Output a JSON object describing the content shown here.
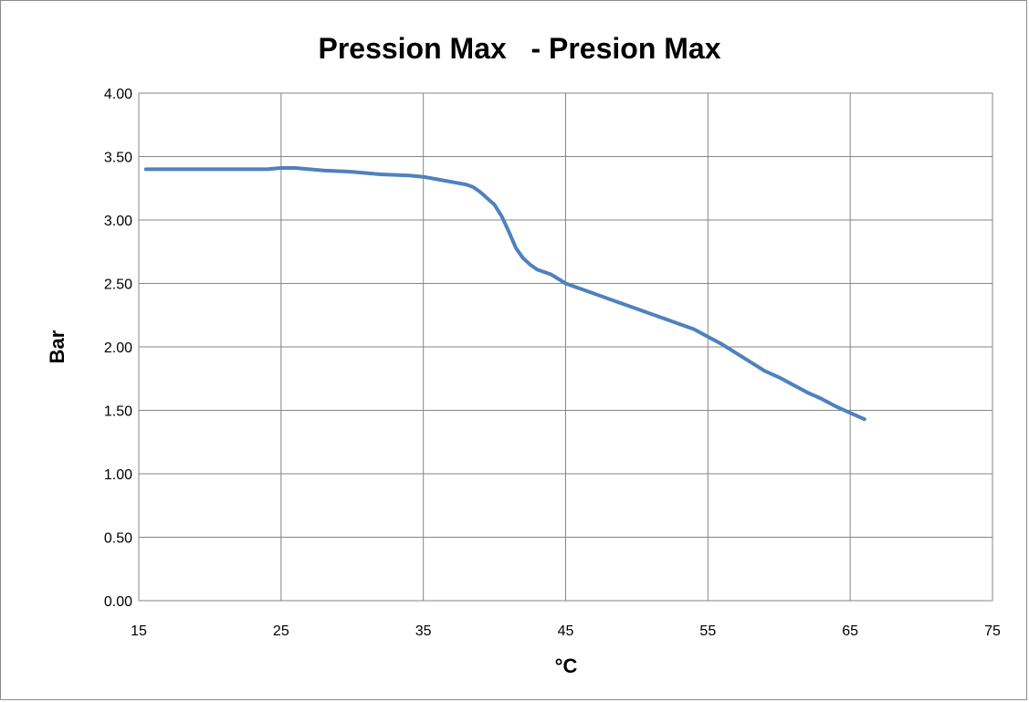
{
  "chart_data": {
    "type": "line",
    "title": "Pression Max   - Presion Max",
    "xlabel": "°C",
    "ylabel": "Bar",
    "xlim": [
      15,
      75
    ],
    "ylim": [
      0,
      4
    ],
    "x_ticks": [
      "15",
      "25",
      "35",
      "45",
      "55",
      "65",
      "75"
    ],
    "y_ticks": [
      "0.00",
      "0.50",
      "1.00",
      "1.50",
      "2.00",
      "2.50",
      "3.00",
      "3.50",
      "4.00"
    ],
    "grid": true,
    "legend": "none",
    "line_color": "#4f81bd",
    "series": [
      {
        "x": [
          15.5,
          18,
          20,
          22,
          24,
          25,
          26,
          28,
          30,
          32,
          34,
          35,
          36,
          37,
          38,
          38.5,
          39,
          39.5,
          40,
          40.5,
          41,
          41.5,
          42,
          42.5,
          43,
          44,
          45,
          46,
          47,
          48,
          49,
          50,
          51,
          52,
          53,
          54,
          55,
          56,
          57,
          58,
          59,
          60,
          61,
          62,
          63,
          64,
          65,
          66
        ],
        "values": [
          3.4,
          3.4,
          3.4,
          3.4,
          3.4,
          3.41,
          3.41,
          3.39,
          3.38,
          3.36,
          3.35,
          3.34,
          3.32,
          3.3,
          3.28,
          3.26,
          3.22,
          3.17,
          3.12,
          3.03,
          2.91,
          2.78,
          2.7,
          2.65,
          2.61,
          2.57,
          2.5,
          2.46,
          2.42,
          2.38,
          2.34,
          2.3,
          2.26,
          2.22,
          2.18,
          2.14,
          2.08,
          2.02,
          1.95,
          1.88,
          1.81,
          1.76,
          1.7,
          1.64,
          1.59,
          1.53,
          1.48,
          1.43
        ]
      }
    ]
  }
}
